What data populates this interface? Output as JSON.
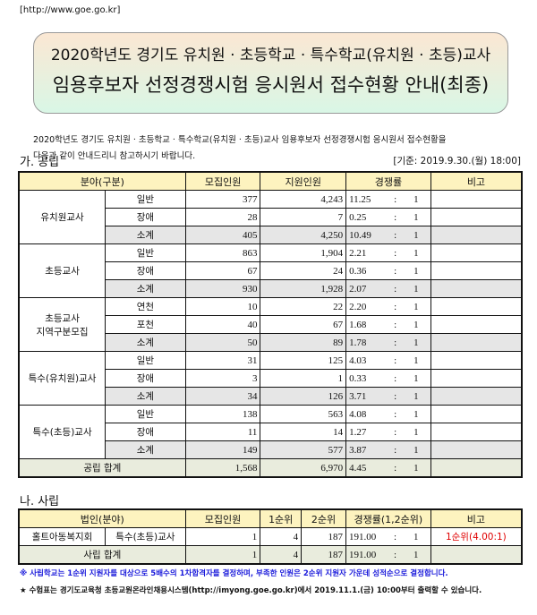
{
  "url": "[http://www.goe.go.kr]",
  "title": {
    "line1": "2020학년도 경기도 유치원 · 초등학교 · 특수학교(유치원 · 초등)교사",
    "line2": "임용후보자 선정경쟁시험 응시원서 접수현황 안내(최종)"
  },
  "intro": {
    "line1": "2020학년도 경기도 유치원 · 초등학교 · 특수학교(유치원 · 초등)교사 임용후보자 선정경쟁시험 응시원서 접수현황을",
    "line2": "다음과 같이 안내드리니 참고하시기 바랍니다."
  },
  "public": {
    "heading": "가. 공립",
    "basis": "[기준: 2019.9.30.(월) 18:00]",
    "headers": [
      "분야(구분)",
      "모집인원",
      "지원인원",
      "경쟁률",
      "비고"
    ],
    "groups": [
      {
        "name": "유치원교사",
        "rows": [
          [
            "일반",
            "377",
            "4,243",
            "11.25"
          ],
          [
            "장애",
            "28",
            "7",
            "0.25"
          ],
          [
            "소계",
            "405",
            "4,250",
            "10.49"
          ]
        ]
      },
      {
        "name": "초등교사",
        "rows": [
          [
            "일반",
            "863",
            "1,904",
            "2.21"
          ],
          [
            "장애",
            "67",
            "24",
            "0.36"
          ],
          [
            "소계",
            "930",
            "1,928",
            "2.07"
          ]
        ]
      },
      {
        "name": "초등교사\n지역구분모집",
        "rows": [
          [
            "연천",
            "10",
            "22",
            "2.20"
          ],
          [
            "포천",
            "40",
            "67",
            "1.68"
          ],
          [
            "소계",
            "50",
            "89",
            "1.78"
          ]
        ]
      },
      {
        "name": "특수(유치원)교사",
        "rows": [
          [
            "일반",
            "31",
            "125",
            "4.03"
          ],
          [
            "장애",
            "3",
            "1",
            "0.33"
          ],
          [
            "소계",
            "34",
            "126",
            "3.71"
          ]
        ]
      },
      {
        "name": "특수(초등)교사",
        "rows": [
          [
            "일반",
            "138",
            "563",
            "4.08"
          ],
          [
            "장애",
            "11",
            "14",
            "1.27"
          ],
          [
            "소계",
            "149",
            "577",
            "3.87"
          ]
        ]
      }
    ],
    "total": {
      "label": "공립 합계",
      "recruit": "1,568",
      "applicants": "6,970",
      "rate": "4.45"
    },
    "ratio_sep": ":",
    "ratio_one": "1"
  },
  "private": {
    "heading": "나. 사립",
    "headers": [
      "법인(분야)",
      "모집인원",
      "1순위",
      "2순위",
      "경쟁률(1,2순위)",
      "비고"
    ],
    "row": {
      "corp": "홀트아동복지회",
      "field": "특수(초등)교사",
      "recruit": "1",
      "first": "4",
      "second": "187",
      "rate": "191.00",
      "note": "1순위(4.00:1)"
    },
    "total": {
      "label": "사립 합계",
      "recruit": "1",
      "first": "4",
      "second": "187",
      "rate": "191.00"
    }
  },
  "notes": {
    "note1": "※ 사립학교는 1순위 지원자를 대상으로 5배수의 1차합격자를 결정하며, 부족한 인원은 2순위 지원자 가운데 성적순으로 결정합니다.",
    "note2": "★ 수험표는 경기도교육청 초등교원온라인채용시스템(http://imyong.goe.go.kr)에서 2019.11.1.(금) 10:00부터 출력할 수 있습니다."
  },
  "colors": {
    "header_bg": "#fdf3bf",
    "subtotal_bg": "#e6e6e6",
    "total_bg": "#e9ecdd",
    "note_blue": "#1a1adb",
    "note_red": "#e00000"
  }
}
